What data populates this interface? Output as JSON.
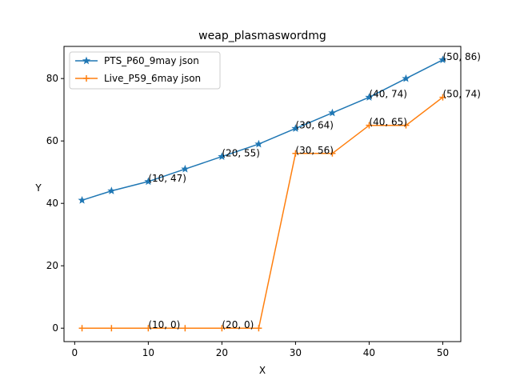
{
  "chart_data": {
    "type": "line",
    "title": "weap_plasmaswordmg",
    "xlabel": "X",
    "ylabel": "Y",
    "xlim": [
      -1.45,
      52.45
    ],
    "ylim": [
      -4.3,
      90.3
    ],
    "xticks": [
      0,
      10,
      20,
      30,
      40,
      50
    ],
    "yticks": [
      0,
      20,
      40,
      60,
      80
    ],
    "grid": false,
    "legend_position": "upper-left",
    "series": [
      {
        "name": "PTS_P60_9may json",
        "color": "#1f77b4",
        "marker": "star",
        "x": [
          1,
          5,
          10,
          15,
          20,
          25,
          30,
          35,
          40,
          45,
          50
        ],
        "y": [
          41,
          44,
          47,
          51,
          55,
          59,
          64,
          69,
          74,
          80,
          86
        ]
      },
      {
        "name": "Live_P59_6may json",
        "color": "#ff7f0e",
        "marker": "plus",
        "x": [
          1,
          5,
          10,
          15,
          20,
          25,
          30,
          35,
          40,
          45,
          50
        ],
        "y": [
          0,
          0,
          0,
          0,
          0,
          0,
          56,
          56,
          65,
          65,
          74
        ]
      }
    ],
    "annotations": [
      {
        "text": "(10, 47)",
        "x": 10,
        "y": 47
      },
      {
        "text": "(20, 55)",
        "x": 20,
        "y": 55
      },
      {
        "text": "(30, 64)",
        "x": 30,
        "y": 64
      },
      {
        "text": "(40, 74)",
        "x": 40,
        "y": 74
      },
      {
        "text": "(50, 86)",
        "x": 50,
        "y": 86
      },
      {
        "text": "(10, 0)",
        "x": 10,
        "y": 0
      },
      {
        "text": "(20, 0)",
        "x": 20,
        "y": 0
      },
      {
        "text": "(30, 56)",
        "x": 30,
        "y": 56
      },
      {
        "text": "(40, 65)",
        "x": 40,
        "y": 65
      },
      {
        "text": "(50, 74)",
        "x": 50,
        "y": 74
      }
    ]
  }
}
